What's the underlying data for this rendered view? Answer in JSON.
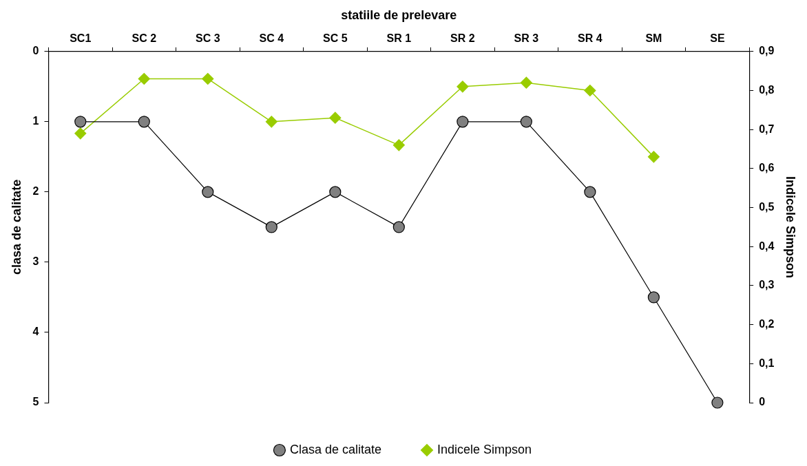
{
  "chart_data": {
    "type": "line",
    "xlabel": "statiile de prelevare",
    "ylabel": "clasa de calitate",
    "y2label": "Indicele Simpson",
    "categories": [
      "SC1",
      "SC 2",
      "SC 3",
      "SC 4",
      "SC 5",
      "SR 1",
      "SR 2",
      "SR 3",
      "SR 4",
      "SM",
      "SE"
    ],
    "series": [
      {
        "name": "Clasa de calitate",
        "color": "#000000",
        "marker": "circle",
        "values": [
          1,
          1,
          2,
          2.5,
          2,
          2.5,
          1,
          1,
          2,
          3.5,
          5
        ]
      },
      {
        "name": "Indicele Simpson",
        "color": "#99cc00",
        "marker": "diamond",
        "axis": "y2",
        "values": [
          0.69,
          0.83,
          0.83,
          0.72,
          0.73,
          0.66,
          0.81,
          0.82,
          0.8,
          0.63,
          null
        ]
      }
    ],
    "ylim": [
      5,
      0
    ],
    "yticks": [
      0,
      1,
      2,
      3,
      4,
      5
    ],
    "y2lim": [
      0,
      0.9
    ],
    "y2ticks": [
      {
        "value": 0,
        "label": "0"
      },
      {
        "value": 0.1,
        "label": "0,1"
      },
      {
        "value": 0.2,
        "label": "0,2"
      },
      {
        "value": 0.3,
        "label": "0,3"
      },
      {
        "value": 0.4,
        "label": "0,4"
      },
      {
        "value": 0.5,
        "label": "0,5"
      },
      {
        "value": 0.6,
        "label": "0,6"
      },
      {
        "value": 0.7,
        "label": "0,7"
      },
      {
        "value": 0.8,
        "label": "0,8"
      },
      {
        "value": 0.9,
        "label": "0,9"
      }
    ],
    "grid": false,
    "legend": "bottom",
    "line_style": "solid"
  }
}
